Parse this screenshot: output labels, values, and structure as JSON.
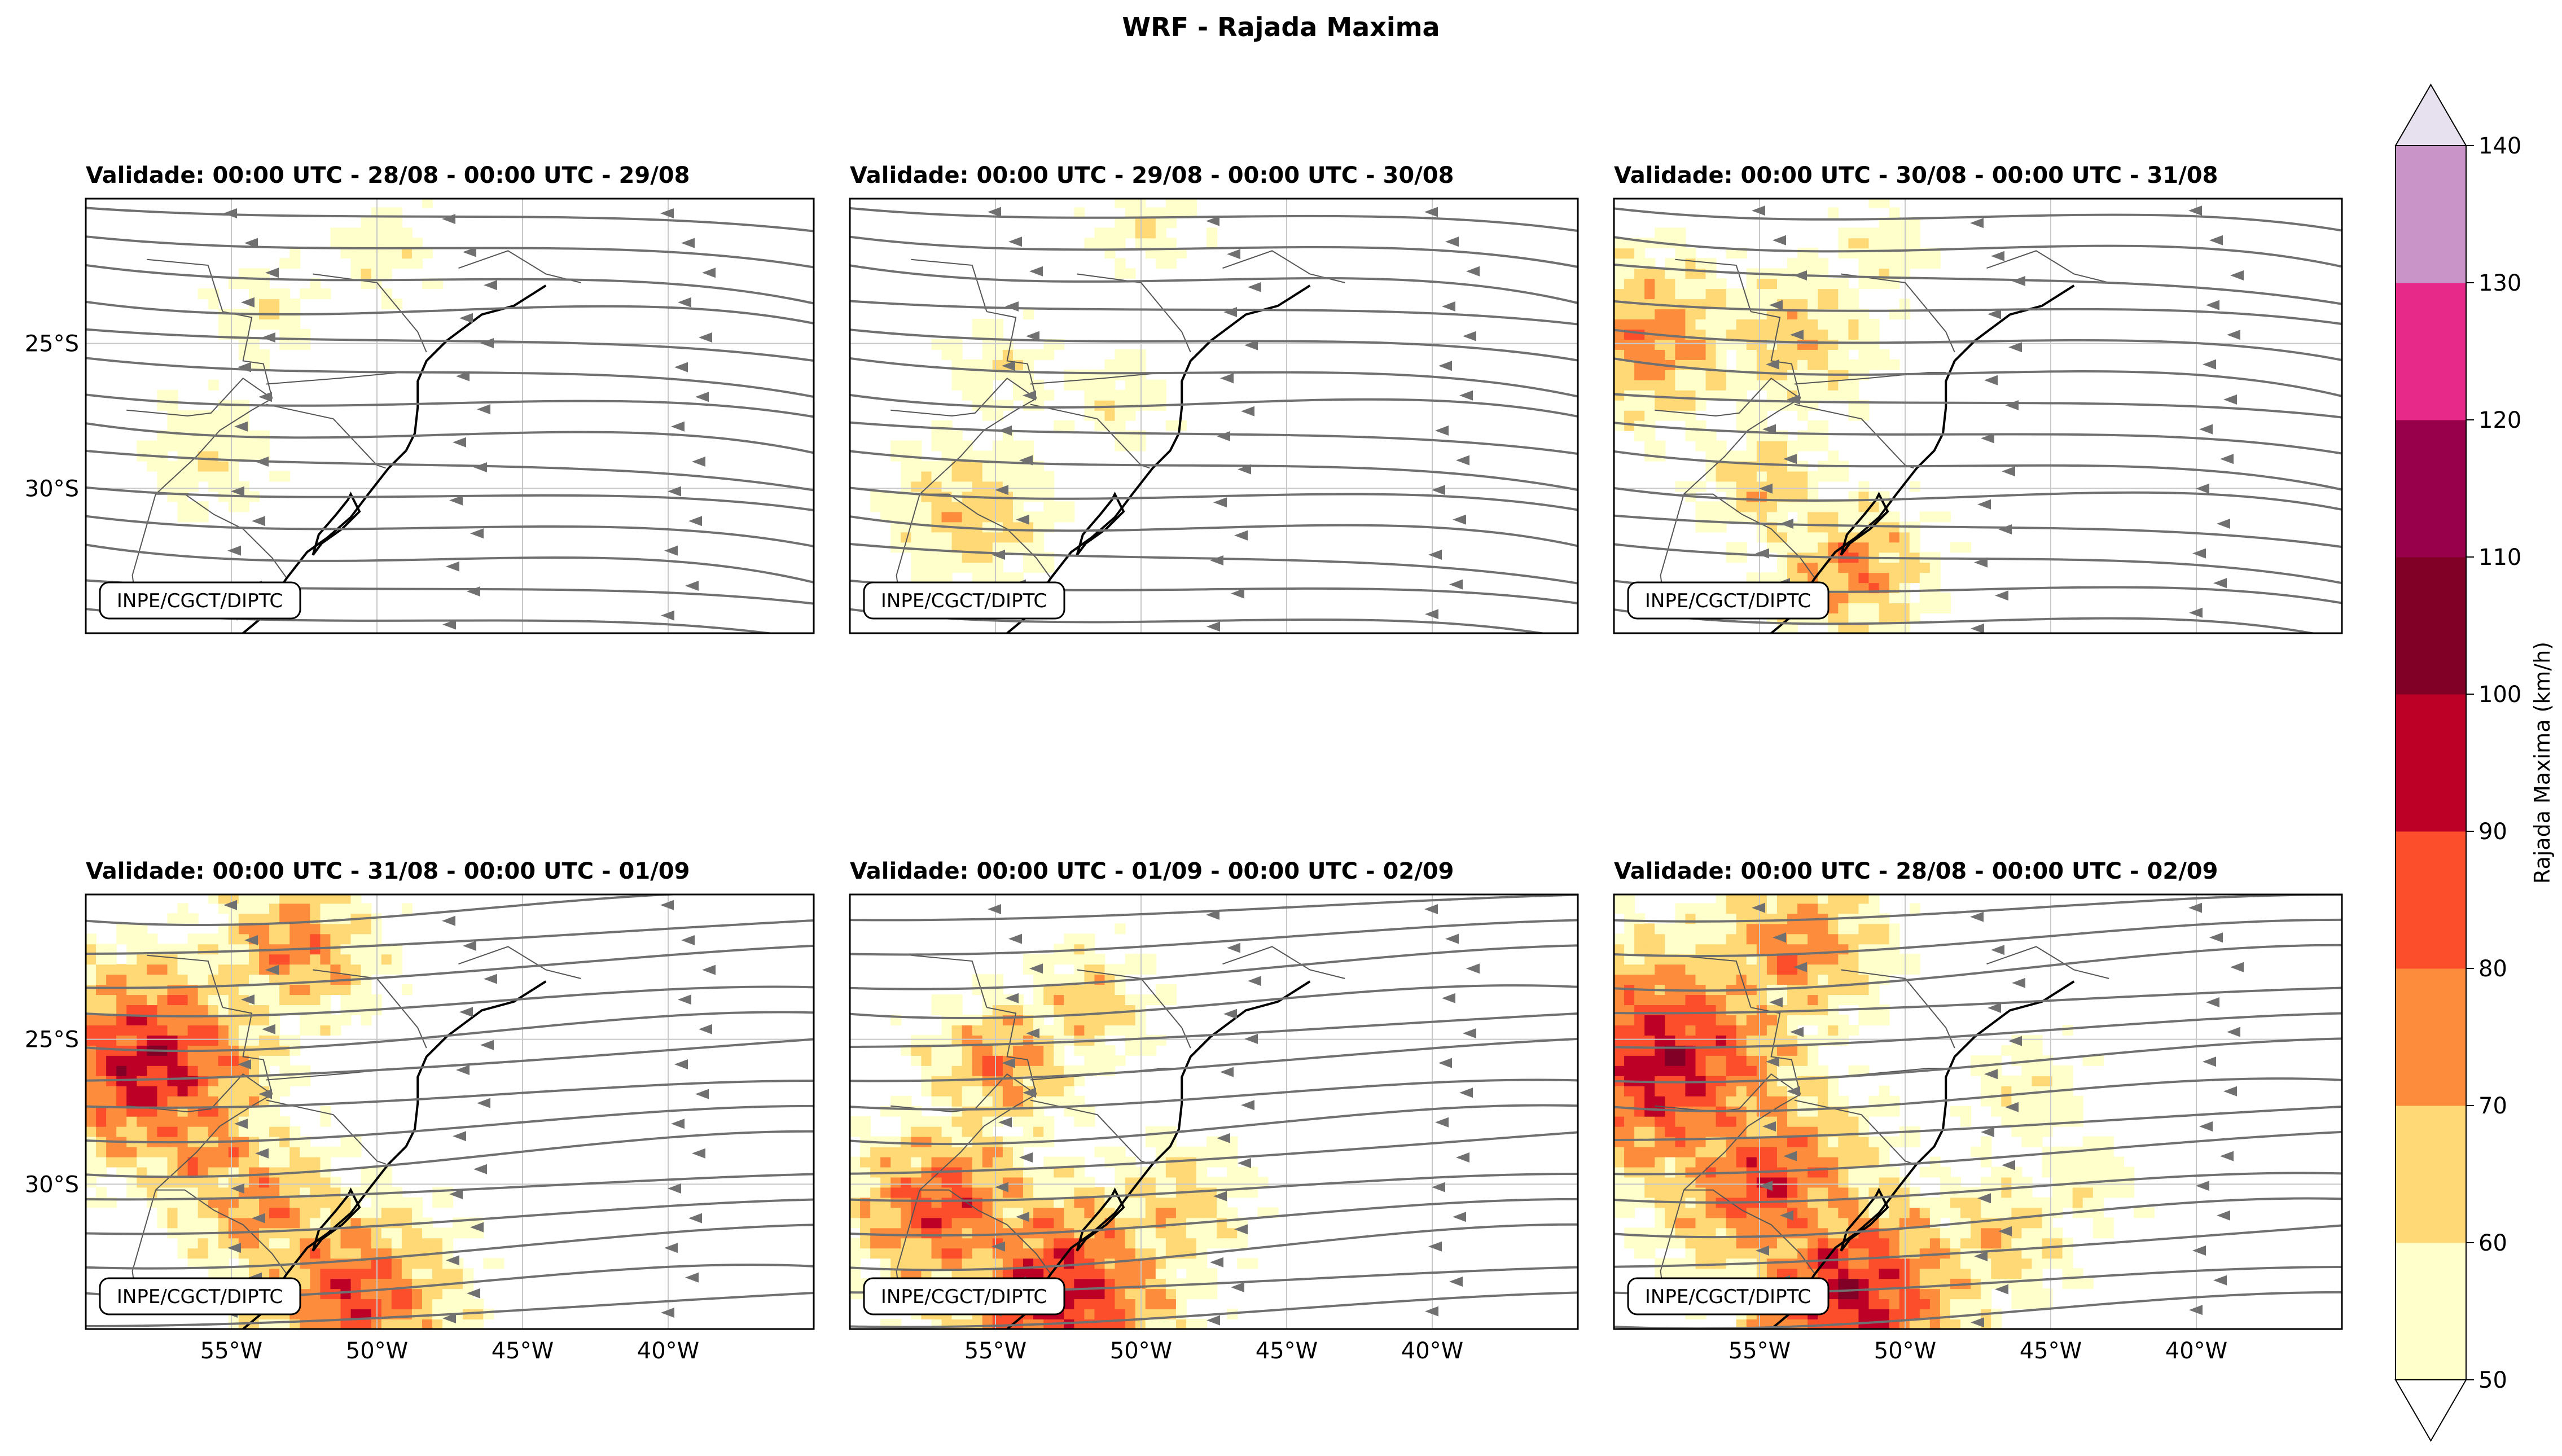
{
  "figure": {
    "title": "WRF - Rajada Maxima",
    "credit": "INPE/CGCT/DIPTC"
  },
  "chart_data": {
    "type": "heatmap",
    "title": "WRF - Rajada Maxima",
    "variable": "Rajada Maxima (km/h)",
    "overlay": "streamlines",
    "lon_range": [
      -60,
      -35
    ],
    "lat_range": [
      -35,
      -20
    ],
    "x_ticks": [
      "55°W",
      "50°W",
      "45°W",
      "40°W"
    ],
    "x_tick_values": [
      -55,
      -50,
      -45,
      -40
    ],
    "y_ticks": [
      "25°S",
      "30°S"
    ],
    "y_tick_values": [
      -25,
      -30
    ],
    "panels": [
      {
        "title": "Validade: 00:00 UTC - 28/08 - 00:00 UTC - 29/08",
        "max_gust_level": 60
      },
      {
        "title": "Validade: 00:00 UTC - 29/08 - 00:00 UTC - 30/08",
        "max_gust_level": 70
      },
      {
        "title": "Validade: 00:00 UTC - 30/08 - 00:00 UTC - 31/08",
        "max_gust_level": 80
      },
      {
        "title": "Validade: 00:00 UTC - 31/08 - 00:00 UTC - 01/09",
        "max_gust_level": 100
      },
      {
        "title": "Validade: 00:00 UTC - 01/09 - 00:00 UTC - 02/09",
        "max_gust_level": 100
      },
      {
        "title": "Validade: 00:00 UTC - 28/08 - 00:00 UTC - 02/09",
        "max_gust_level": 100
      }
    ],
    "colorbar": {
      "label": "Rajada Maxima (km/h)",
      "levels": [
        50,
        60,
        70,
        80,
        90,
        100,
        110,
        120,
        130,
        140
      ],
      "tick_labels": [
        "50",
        "60",
        "70",
        "80",
        "90",
        "100",
        "110",
        "120",
        "130",
        "140"
      ],
      "colors": [
        "#ffffcc",
        "#fed976",
        "#fd8d3c",
        "#fc4e2a",
        "#bd0026",
        "#800026",
        "#99004c",
        "#e7298a",
        "#c994c7",
        "#e7e1ef"
      ],
      "extend": "both"
    }
  }
}
